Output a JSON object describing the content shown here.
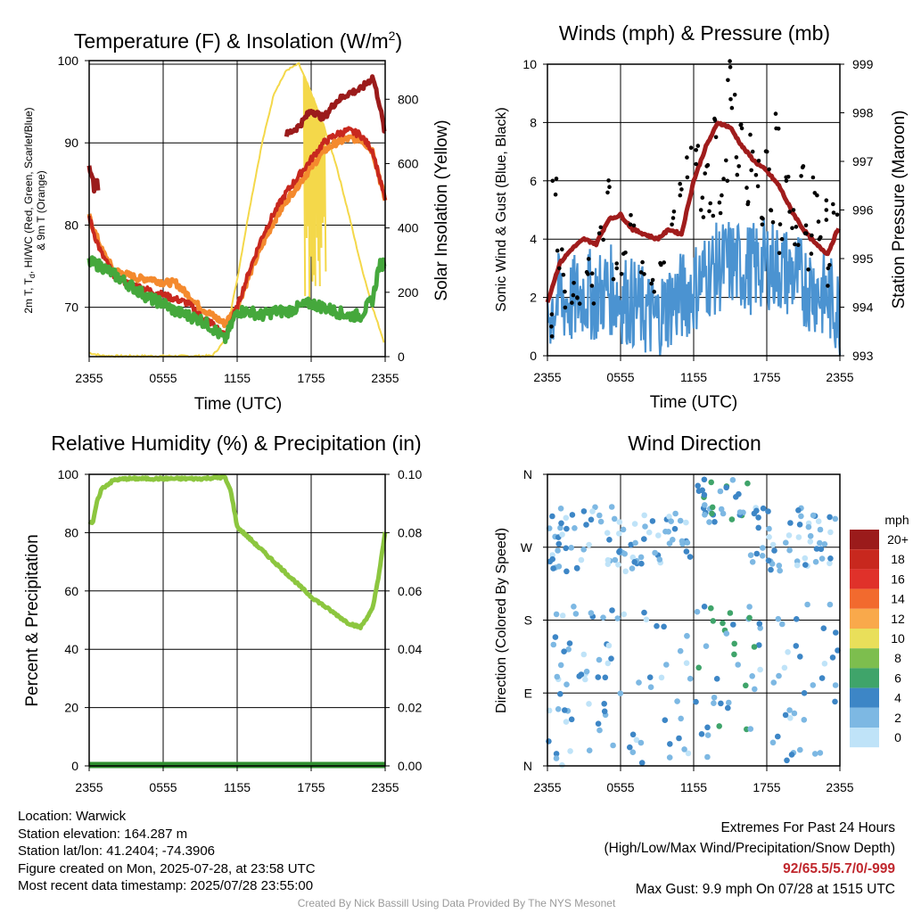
{
  "colors": {
    "temp": "#c8281e",
    "heat_index": "#e0312a",
    "dewpoint": "#45a83c",
    "temp_9m": "#f48a2e",
    "temp_maroon": "#9b1b1b",
    "insolation": "#f4d84a",
    "wind": "#4b93d1",
    "gust": "#000000",
    "pressure": "#a01c1c",
    "rh": "#8cc63f",
    "precip": "#2f8f2f"
  },
  "time_ticks": [
    "2355",
    "0555",
    "1155",
    "1755",
    "2355"
  ],
  "panels": {
    "temp": {
      "title": "Temperature (F) & Insolation (W/m",
      "title_sup": "2",
      "title_end": ")",
      "ylabel_left_1": "2m T, T",
      "ylabel_left_sub": "d",
      "ylabel_left_2": ", HI/WC (Red, Green, Scarlet/Blue)",
      "ylabel_left_3": "& 9m T (Orange)",
      "ylabel_right": "Solar Insolation (Yellow)",
      "xlabel": "Time (UTC)"
    },
    "wind": {
      "title": "Winds (mph) & Pressure (mb)",
      "ylabel_left": "Sonic Wind & Gust (Blue, Black)",
      "ylabel_right": "Station Pressure (Maroon)",
      "xlabel": "Time (UTC)"
    },
    "rh": {
      "title": "Relative Humidity (%) & Precipitation (in)",
      "ylabel_left": "Percent & Precipitation"
    },
    "dir": {
      "title": "Wind Direction",
      "ylabel_left": "Direction (Colored By Speed)",
      "legend_title": "mph"
    }
  },
  "chart_data": [
    {
      "id": "temperature_insolation",
      "type": "line",
      "x_ticks": [
        "2355",
        "0555",
        "1155",
        "1755",
        "2355"
      ],
      "ylim_left": [
        64,
        100
      ],
      "yticks_left": [
        70,
        80,
        90,
        100
      ],
      "ylim_right": [
        0,
        920
      ],
      "yticks_right": [
        0,
        200,
        400,
        600,
        800
      ],
      "series": [
        {
          "key": "heat_index_maroon",
          "x": [
            0,
            0.2,
            0.4,
            0.6,
            0.75,
            1,
            2,
            3,
            4,
            5,
            6,
            7,
            8,
            9,
            10,
            11,
            12,
            13,
            14,
            15,
            16,
            17,
            18,
            19,
            20,
            21,
            22,
            23,
            23.5,
            24
          ],
          "y": [
            87,
            86.5,
            84.5,
            86,
            84,
            null,
            null,
            null,
            null,
            null,
            null,
            null,
            null,
            null,
            null,
            null,
            null,
            null,
            null,
            null,
            91,
            92,
            94,
            93,
            95,
            96,
            96.5,
            98,
            95,
            91
          ]
        },
        {
          "key": "temp_9m_orange",
          "x": [
            0,
            0.5,
            1,
            2,
            3,
            4,
            5,
            6,
            7,
            8,
            9,
            10,
            11,
            12,
            13,
            14,
            15,
            16,
            17,
            18,
            19,
            20,
            21,
            22,
            23,
            23.5,
            24
          ],
          "y": [
            81,
            79,
            77,
            74.5,
            74,
            73.5,
            73.5,
            73,
            73,
            71.5,
            70,
            69,
            68,
            70,
            74,
            77.5,
            80.5,
            83,
            85,
            87,
            89,
            90,
            90.5,
            90.5,
            89,
            86,
            83
          ]
        },
        {
          "key": "temp_red",
          "x": [
            0,
            0.5,
            1,
            2,
            3,
            4,
            5,
            6,
            7,
            8,
            9,
            10,
            11,
            12,
            13,
            14,
            15,
            16,
            17,
            18,
            19,
            20,
            21,
            22,
            23,
            23.5,
            24
          ],
          "y": [
            81,
            78.5,
            76.5,
            74,
            73,
            72.5,
            72,
            71.5,
            71,
            70.5,
            69,
            68,
            66.5,
            70,
            74.5,
            78.5,
            81.5,
            84,
            86,
            88,
            90,
            91,
            91.5,
            91,
            89,
            86,
            83
          ]
        },
        {
          "key": "dewpoint_green",
          "x": [
            0,
            1,
            2,
            3,
            4,
            5,
            6,
            7,
            8,
            9,
            10,
            11,
            12,
            13,
            14,
            15,
            16,
            17,
            18,
            19,
            20,
            21,
            22,
            23,
            23.5,
            24
          ],
          "y": [
            75.5,
            75,
            74,
            73,
            72,
            71,
            70.5,
            69.5,
            69,
            68.5,
            67.5,
            66,
            69.5,
            69.5,
            69,
            69.5,
            69.5,
            70,
            70.5,
            70,
            69.5,
            69,
            69,
            71,
            75,
            75.5
          ]
        },
        {
          "key": "insolation_yellow",
          "axis": "right",
          "x": [
            0,
            1,
            2,
            3,
            4,
            5,
            6,
            7,
            8,
            9,
            10,
            11,
            12,
            13,
            14,
            15,
            16,
            17,
            18,
            19,
            20,
            21,
            22,
            23,
            24
          ],
          "y": [
            12,
            3,
            2,
            2,
            2,
            2,
            2,
            2,
            2,
            2,
            3,
            50,
            240,
            460,
            660,
            820,
            890,
            910,
            820,
            720,
            600,
            450,
            290,
            150,
            35
          ]
        }
      ]
    },
    {
      "id": "winds_pressure",
      "type": "line",
      "x_ticks": [
        "2355",
        "0555",
        "1155",
        "1755",
        "2355"
      ],
      "ylim_left": [
        0,
        10
      ],
      "yticks_left": [
        0,
        2,
        4,
        6,
        8,
        10
      ],
      "ylim_right": [
        993,
        999
      ],
      "yticks_right": [
        993,
        994,
        995,
        996,
        997,
        998,
        999
      ],
      "series": [
        {
          "key": "pressure_maroon",
          "axis": "right",
          "x": [
            0,
            1,
            2,
            3,
            4,
            5,
            6,
            7,
            8,
            9,
            10,
            11,
            12,
            13,
            14,
            15,
            16,
            17,
            18,
            19,
            20,
            21,
            22,
            23,
            24
          ],
          "y": [
            994.1,
            994.9,
            995.2,
            995.4,
            995.3,
            995.8,
            995.9,
            995.6,
            995.5,
            995.4,
            995.6,
            995.5,
            996.6,
            997.3,
            997.8,
            997.7,
            997.3,
            997.0,
            996.8,
            996.5,
            996.0,
            995.6,
            995.3,
            995.1,
            995.7
          ]
        },
        {
          "key": "wind_blue",
          "x": [
            0,
            1,
            2,
            3,
            4,
            5,
            6,
            7,
            8,
            9,
            10,
            11,
            12,
            13,
            14,
            15,
            16,
            17,
            18,
            19,
            20,
            21,
            22,
            23,
            24
          ],
          "y": [
            1.5,
            2.0,
            1.8,
            2.2,
            2.0,
            2.3,
            2.0,
            1.8,
            1.5,
            1.2,
            1.8,
            2.0,
            2.3,
            2.8,
            3.0,
            3.2,
            3.0,
            3.0,
            3.2,
            3.0,
            2.8,
            2.5,
            2.3,
            2.0,
            1.5
          ],
          "spread": 1.6
        },
        {
          "key": "gust_black",
          "type": "scatter",
          "x": [
            0.2,
            0.6,
            1.0,
            1.5,
            2.0,
            2.6,
            3.2,
            3.8,
            4.4,
            5.0,
            5.6,
            6.2,
            7.0,
            7.8,
            8.6,
            9.4,
            10.2,
            11.0,
            11.6,
            12.2,
            12.6,
            13.0,
            13.4,
            13.8,
            14.2,
            14.6,
            15.0,
            15.2,
            15.6,
            16.0,
            16.4,
            16.8,
            17.2,
            17.6,
            18.0,
            18.4,
            18.8,
            19.2,
            19.6,
            20.0,
            20.4,
            20.8,
            21.2,
            21.6,
            22.0,
            22.4,
            22.8,
            23.2,
            23.6
          ],
          "y": [
            1.0,
            6.0,
            3.0,
            2.2,
            2.5,
            2.0,
            2.8,
            2.4,
            4.2,
            5.6,
            3.0,
            3.5,
            4.5,
            2.8,
            2.6,
            3.2,
            4.5,
            5.5,
            6.8,
            7.2,
            5.0,
            6.5,
            4.8,
            7.5,
            5.5,
            6.0,
            9.9,
            8.5,
            6.5,
            7.8,
            5.2,
            7.0,
            6.2,
            4.5,
            7.0,
            5.0,
            8.3,
            4.0,
            6.0,
            5.0,
            3.8,
            6.5,
            4.2,
            3.5,
            5.5,
            4.0,
            5.0,
            3.0,
            5.2
          ]
        }
      ]
    },
    {
      "id": "humidity_precip",
      "type": "line",
      "x_ticks": [
        "2355",
        "0555",
        "1155",
        "1755",
        "2355"
      ],
      "ylim_left": [
        0,
        100
      ],
      "yticks_left": [
        0,
        20,
        40,
        60,
        80,
        100
      ],
      "ylim_right": [
        0,
        0.1
      ],
      "yticks_right": [
        "0.00",
        "0.02",
        "0.04",
        "0.06",
        "0.08",
        "0.10"
      ],
      "series": [
        {
          "key": "rh",
          "x": [
            0,
            0.3,
            0.6,
            1,
            2,
            3,
            4,
            5,
            6,
            7,
            8,
            9,
            10,
            11,
            11.5,
            12,
            13,
            14,
            15,
            16,
            17,
            18,
            19,
            20,
            21,
            22,
            23,
            23.5,
            24
          ],
          "y": [
            84,
            83,
            90,
            95,
            98,
            98.5,
            98.5,
            98.5,
            98.5,
            98.5,
            98.5,
            98.5,
            98.8,
            99,
            94,
            82,
            78,
            74,
            70,
            66,
            62,
            58,
            55,
            52,
            49,
            47.5,
            54,
            66,
            80
          ]
        },
        {
          "key": "precip",
          "axis": "right",
          "x": [
            0,
            24
          ],
          "y": [
            0,
            0
          ]
        }
      ]
    },
    {
      "id": "wind_direction",
      "type": "scatter",
      "x_ticks": [
        "2355",
        "0555",
        "1155",
        "1755",
        "2355"
      ],
      "y_ticks": [
        "N",
        "E",
        "S",
        "W",
        "N"
      ],
      "ylim": [
        0,
        360
      ],
      "legend": {
        "labels": [
          "20+",
          "18",
          "16",
          "14",
          "12",
          "10",
          "8",
          "6",
          "4",
          "2",
          "0"
        ],
        "colors": [
          "#9b1b1b",
          "#c8281e",
          "#e0312a",
          "#f26a2e",
          "#f9a94b",
          "#e9df5a",
          "#7dbe4e",
          "#3fa46a",
          "#3d86c6",
          "#7db8e3",
          "#bfe3f8"
        ]
      }
    }
  ],
  "info": {
    "location": "Location: Warwick",
    "elevation": "Station elevation: 164.287 m",
    "latlon": "Station lat/lon: 41.2404; -74.3906",
    "created": "Figure created on Mon, 2025-07-28, at 23:58 UTC",
    "recent": "Most recent data timestamp: 2025/07/28 23:55:00"
  },
  "extremes": {
    "title": "Extremes For Past 24 Hours",
    "subtitle": "(High/Low/Max Wind/Precipitation/Snow Depth)",
    "values": "92/65.5/5.7/0/-999",
    "max_gust": "Max Gust: 9.9 mph On 07/28 at 1515 UTC"
  },
  "credit": "Created By Nick Bassill Using Data Provided By The NYS Mesonet"
}
